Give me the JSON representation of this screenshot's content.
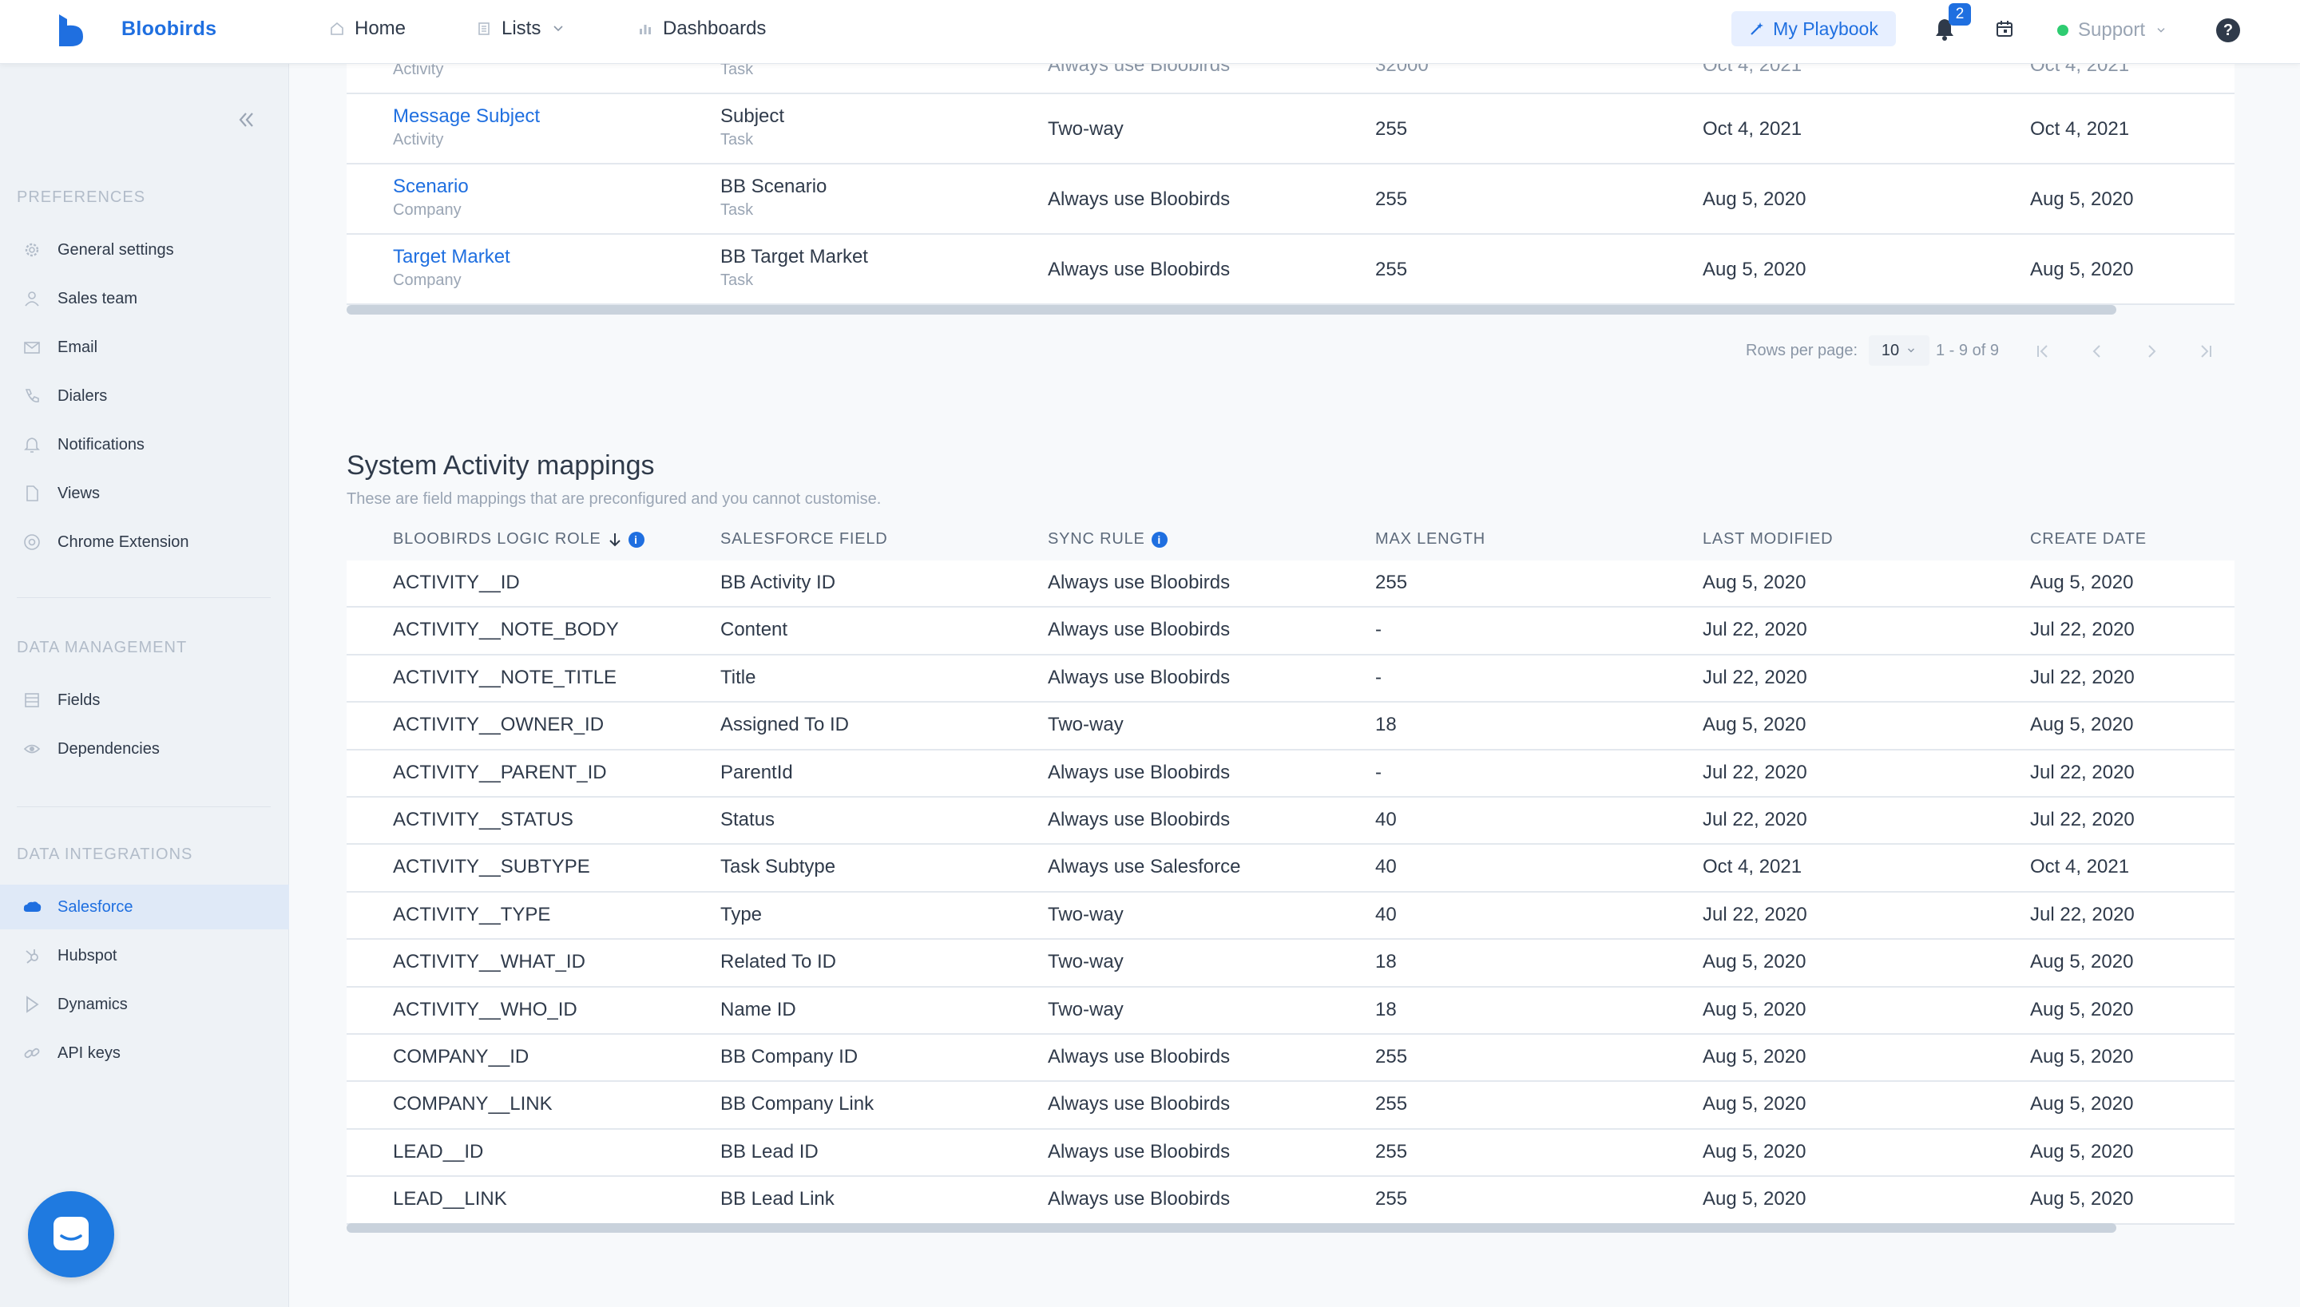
{
  "topbar": {
    "brand": "Bloobirds",
    "nav": {
      "home": "Home",
      "lists": "Lists",
      "dashboards": "Dashboards"
    },
    "playbook_label": "My Playbook",
    "notifications_count": "2",
    "support_label": "Support",
    "help_label": "?"
  },
  "sidebar": {
    "preferences_title": "PREFERENCES",
    "preferences": [
      {
        "label": "General settings",
        "icon": "gear-icon"
      },
      {
        "label": "Sales team",
        "icon": "user-icon"
      },
      {
        "label": "Email",
        "icon": "mail-icon"
      },
      {
        "label": "Dialers",
        "icon": "phone-icon"
      },
      {
        "label": "Notifications",
        "icon": "bell-icon"
      },
      {
        "label": "Views",
        "icon": "file-icon"
      },
      {
        "label": "Chrome Extension",
        "icon": "chrome-icon"
      }
    ],
    "data_management_title": "DATA MANAGEMENT",
    "data_management": [
      {
        "label": "Fields",
        "icon": "list-icon"
      },
      {
        "label": "Dependencies",
        "icon": "eye-icon"
      }
    ],
    "data_integrations_title": "DATA INTEGRATIONS",
    "data_integrations": [
      {
        "label": "Salesforce",
        "icon": "salesforce-icon",
        "active": true
      },
      {
        "label": "Hubspot",
        "icon": "hubspot-icon"
      },
      {
        "label": "Dynamics",
        "icon": "dynamics-icon"
      },
      {
        "label": "API keys",
        "icon": "link-icon"
      }
    ]
  },
  "top_table": {
    "partial_row": {
      "role": "",
      "role_sub": "Activity",
      "field": "",
      "field_sub": "Task",
      "sync": "Always use Bloobirds",
      "max": "32000",
      "modified": "Oct 4, 2021",
      "created": "Oct 4, 2021"
    },
    "rows": [
      {
        "role": "Message Subject",
        "role_sub": "Activity",
        "field": "Subject",
        "field_sub": "Task",
        "sync": "Two-way",
        "max": "255",
        "modified": "Oct 4, 2021",
        "created": "Oct 4, 2021"
      },
      {
        "role": "Scenario",
        "role_sub": "Company",
        "field": "BB Scenario",
        "field_sub": "Task",
        "sync": "Always use Bloobirds",
        "max": "255",
        "modified": "Aug 5, 2020",
        "created": "Aug 5, 2020"
      },
      {
        "role": "Target Market",
        "role_sub": "Company",
        "field": "BB Target Market",
        "field_sub": "Task",
        "sync": "Always use Bloobirds",
        "max": "255",
        "modified": "Aug 5, 2020",
        "created": "Aug 5, 2020"
      }
    ],
    "pagination": {
      "rows_per_page_label": "Rows per page:",
      "rows_per_page": "10",
      "range": "1 - 9 of 9"
    }
  },
  "system_mappings": {
    "title": "System Activity mappings",
    "description": "These are field mappings that are preconfigured and you cannot customise.",
    "columns": [
      "BLOOBIRDS LOGIC ROLE",
      "SALESFORCE FIELD",
      "SYNC RULE",
      "MAX LENGTH",
      "LAST MODIFIED",
      "CREATE DATE"
    ],
    "rows": [
      [
        "ACTIVITY__ID",
        "BB Activity ID",
        "Always use Bloobirds",
        "255",
        "Aug 5, 2020",
        "Aug 5, 2020"
      ],
      [
        "ACTIVITY__NOTE_BODY",
        "Content",
        "Always use Bloobirds",
        "-",
        "Jul 22, 2020",
        "Jul 22, 2020"
      ],
      [
        "ACTIVITY__NOTE_TITLE",
        "Title",
        "Always use Bloobirds",
        "-",
        "Jul 22, 2020",
        "Jul 22, 2020"
      ],
      [
        "ACTIVITY__OWNER_ID",
        "Assigned To ID",
        "Two-way",
        "18",
        "Aug 5, 2020",
        "Aug 5, 2020"
      ],
      [
        "ACTIVITY__PARENT_ID",
        "ParentId",
        "Always use Bloobirds",
        "-",
        "Jul 22, 2020",
        "Jul 22, 2020"
      ],
      [
        "ACTIVITY__STATUS",
        "Status",
        "Always use Bloobirds",
        "40",
        "Jul 22, 2020",
        "Jul 22, 2020"
      ],
      [
        "ACTIVITY__SUBTYPE",
        "Task Subtype",
        "Always use Salesforce",
        "40",
        "Oct 4, 2021",
        "Oct 4, 2021"
      ],
      [
        "ACTIVITY__TYPE",
        "Type",
        "Two-way",
        "40",
        "Jul 22, 2020",
        "Jul 22, 2020"
      ],
      [
        "ACTIVITY__WHAT_ID",
        "Related To ID",
        "Two-way",
        "18",
        "Aug 5, 2020",
        "Aug 5, 2020"
      ],
      [
        "ACTIVITY__WHO_ID",
        "Name ID",
        "Two-way",
        "18",
        "Aug 5, 2020",
        "Aug 5, 2020"
      ],
      [
        "COMPANY__ID",
        "BB Company ID",
        "Always use Bloobirds",
        "255",
        "Aug 5, 2020",
        "Aug 5, 2020"
      ],
      [
        "COMPANY__LINK",
        "BB Company Link",
        "Always use Bloobirds",
        "255",
        "Aug 5, 2020",
        "Aug 5, 2020"
      ],
      [
        "LEAD__ID",
        "BB Lead ID",
        "Always use Bloobirds",
        "255",
        "Aug 5, 2020",
        "Aug 5, 2020"
      ],
      [
        "LEAD__LINK",
        "BB Lead Link",
        "Always use Bloobirds",
        "255",
        "Aug 5, 2020",
        "Aug 5, 2020"
      ]
    ]
  },
  "colors": {
    "accent": "#1f6fe0",
    "sidebar_bg": "#eef2f6",
    "active_item_bg": "#dfe9f7",
    "status_online": "#2ecc71"
  }
}
